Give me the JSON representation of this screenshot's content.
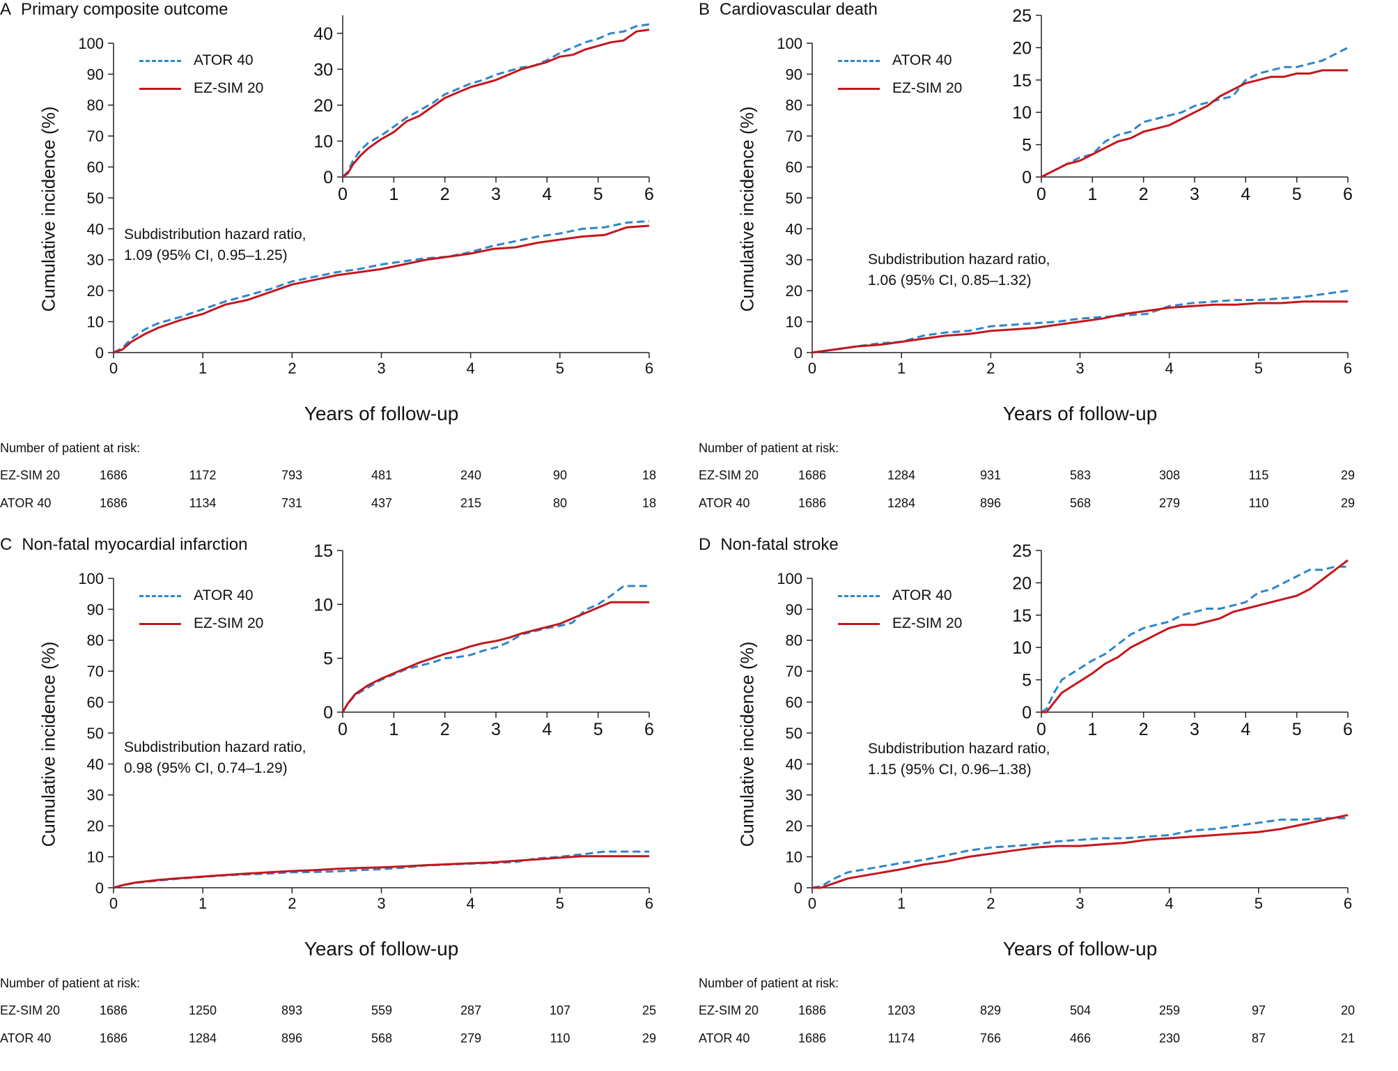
{
  "chart_data": [
    {
      "type": "line",
      "letter": "A",
      "title": "Primary composite outcome",
      "xlabel": "Years of follow-up",
      "ylabel": "Cumulative incidence (%)",
      "xlim": [
        0,
        6
      ],
      "ylim": [
        0,
        100
      ],
      "xticks": [
        0,
        1,
        2,
        3,
        4,
        5,
        6
      ],
      "yticks": [
        0,
        10,
        20,
        30,
        40,
        50,
        60,
        70,
        80,
        90,
        100
      ],
      "annotation": [
        "Subdistribution hazard ratio,",
        "1.09 (95% CI, 0.95–1.25)"
      ],
      "series": [
        {
          "name": "ATOR 40",
          "style": "dashed",
          "color": "#2f86c8",
          "x": [
            0,
            0.1,
            0.2,
            0.35,
            0.5,
            0.75,
            1,
            1.25,
            1.5,
            1.75,
            2,
            2.25,
            2.5,
            2.75,
            3,
            3.25,
            3.5,
            3.75,
            4,
            4.25,
            4.5,
            4.75,
            5,
            5.25,
            5.5,
            5.75,
            6
          ],
          "y": [
            0,
            1.5,
            4.5,
            7.5,
            9.5,
            11.5,
            14,
            16.5,
            18.5,
            20.5,
            23,
            24.5,
            26,
            27,
            28.5,
            29.5,
            30.5,
            31,
            32.5,
            34.5,
            36,
            37.5,
            38.5,
            40,
            40.5,
            42,
            42.5
          ]
        },
        {
          "name": "EZ-SIM 20",
          "style": "solid",
          "color": "#c4161c",
          "x": [
            0,
            0.1,
            0.2,
            0.35,
            0.5,
            0.75,
            1,
            1.25,
            1.5,
            1.75,
            2,
            2.25,
            2.5,
            2.75,
            3,
            3.25,
            3.5,
            3.75,
            4,
            4.25,
            4.5,
            4.75,
            5,
            5.25,
            5.5,
            5.75,
            6
          ],
          "y": [
            0,
            1,
            3.5,
            6,
            8,
            10.5,
            12.5,
            15.5,
            17,
            19.5,
            22,
            23.5,
            25,
            26,
            27,
            28.5,
            30,
            31,
            32,
            33.5,
            34,
            35.5,
            36.5,
            37.5,
            38,
            40.5,
            41
          ]
        }
      ],
      "inset": {
        "xlim": [
          0,
          6
        ],
        "ylim": [
          0,
          45
        ],
        "xticks": [
          0,
          1,
          2,
          3,
          4,
          5,
          6
        ],
        "yticks": [
          0,
          10,
          20,
          30,
          40
        ]
      },
      "risk_table": {
        "header": "Number of patient at risk:",
        "rows": [
          {
            "name": "EZ-SIM 20",
            "values": [
              "1686",
              "1172",
              "793",
              "481",
              "240",
              "90",
              "18"
            ]
          },
          {
            "name": "ATOR 40",
            "values": [
              "1686",
              "1134",
              "731",
              "437",
              "215",
              "80",
              "18"
            ]
          }
        ]
      }
    },
    {
      "type": "line",
      "letter": "B",
      "title": "Cardiovascular death",
      "xlabel": "Years of follow-up",
      "ylabel": "Cumulative incidence (%)",
      "xlim": [
        0,
        6
      ],
      "ylim": [
        0,
        100
      ],
      "xticks": [
        0,
        1,
        2,
        3,
        4,
        5,
        6
      ],
      "yticks": [
        0,
        10,
        20,
        30,
        40,
        50,
        60,
        70,
        80,
        90,
        100
      ],
      "annotation": [
        "Subdistribution hazard ratio,",
        "1.06 (95% CI, 0.85–1.32)"
      ],
      "series": [
        {
          "name": "ATOR 40",
          "style": "dashed",
          "color": "#2f86c8",
          "x": [
            0,
            0.25,
            0.5,
            0.75,
            1,
            1.25,
            1.5,
            1.75,
            2,
            2.25,
            2.5,
            2.75,
            3,
            3.25,
            3.5,
            3.75,
            4,
            4.25,
            4.5,
            4.75,
            5,
            5.25,
            5.5,
            5.75,
            6
          ],
          "y": [
            0,
            1,
            2,
            3,
            3.5,
            5.5,
            6.5,
            7,
            8.5,
            9,
            9.5,
            10,
            11,
            11.5,
            12,
            12.5,
            15,
            16,
            16.5,
            17,
            17,
            17.5,
            18,
            19,
            20
          ]
        },
        {
          "name": "EZ-SIM 20",
          "style": "solid",
          "color": "#c4161c",
          "x": [
            0,
            0.25,
            0.5,
            0.75,
            1,
            1.25,
            1.5,
            1.75,
            2,
            2.25,
            2.5,
            2.75,
            3,
            3.25,
            3.5,
            3.75,
            4,
            4.25,
            4.5,
            4.75,
            5,
            5.25,
            5.5,
            5.75,
            6
          ],
          "y": [
            0,
            1,
            2,
            2.5,
            3.5,
            4.5,
            5.5,
            6,
            7,
            7.5,
            8,
            9,
            10,
            11,
            12.5,
            13.5,
            14.5,
            15,
            15.5,
            15.5,
            16,
            16,
            16.5,
            16.5,
            16.5
          ]
        }
      ],
      "inset": {
        "xlim": [
          0,
          6
        ],
        "ylim": [
          0,
          25
        ],
        "xticks": [
          0,
          1,
          2,
          3,
          4,
          5,
          6
        ],
        "yticks": [
          0,
          5,
          10,
          15,
          20,
          25
        ]
      },
      "risk_table": {
        "header": "Number of patient at risk:",
        "rows": [
          {
            "name": "EZ-SIM 20",
            "values": [
              "1686",
              "1284",
              "931",
              "583",
              "308",
              "115",
              "29"
            ]
          },
          {
            "name": "ATOR 40",
            "values": [
              "1686",
              "1284",
              "896",
              "568",
              "279",
              "110",
              "29"
            ]
          }
        ]
      }
    },
    {
      "type": "line",
      "letter": "C",
      "title": "Non-fatal myocardial infarction",
      "xlabel": "Years of follow-up",
      "ylabel": "Cumulative incidence (%)",
      "xlim": [
        0,
        6
      ],
      "ylim": [
        0,
        100
      ],
      "xticks": [
        0,
        1,
        2,
        3,
        4,
        5,
        6
      ],
      "yticks": [
        0,
        10,
        20,
        30,
        40,
        50,
        60,
        70,
        80,
        90,
        100
      ],
      "annotation": [
        "Subdistribution hazard ratio,",
        "0.98 (95% CI, 0.74–1.29)"
      ],
      "series": [
        {
          "name": "ATOR 40",
          "style": "dashed",
          "color": "#2f86c8",
          "x": [
            0,
            0.1,
            0.25,
            0.5,
            0.75,
            1,
            1.25,
            1.5,
            1.75,
            2,
            2.25,
            2.5,
            2.75,
            3,
            3.25,
            3.5,
            3.75,
            4,
            4.25,
            4.5,
            4.75,
            5,
            5.25,
            5.5,
            5.75,
            6
          ],
          "y": [
            0,
            0.8,
            1.6,
            2.3,
            3,
            3.5,
            4,
            4.3,
            4.6,
            5,
            5.1,
            5.3,
            5.7,
            6,
            6.5,
            7.2,
            7.5,
            7.8,
            8,
            8.3,
            9.5,
            10,
            10.8,
            11.7,
            11.7,
            11.7
          ]
        },
        {
          "name": "EZ-SIM 20",
          "style": "solid",
          "color": "#c4161c",
          "x": [
            0,
            0.1,
            0.25,
            0.5,
            0.75,
            1,
            1.25,
            1.5,
            1.75,
            2,
            2.25,
            2.5,
            2.75,
            3,
            3.25,
            3.5,
            3.75,
            4,
            4.25,
            4.5,
            4.75,
            5,
            5.25,
            5.5,
            5.75,
            6
          ],
          "y": [
            0,
            0.8,
            1.7,
            2.5,
            3.1,
            3.6,
            4.1,
            4.6,
            5,
            5.4,
            5.7,
            6.1,
            6.4,
            6.6,
            6.9,
            7.3,
            7.6,
            7.9,
            8.2,
            8.7,
            9.2,
            9.7,
            10.2,
            10.2,
            10.2,
            10.2
          ]
        }
      ],
      "inset": {
        "xlim": [
          0,
          6
        ],
        "ylim": [
          0,
          15
        ],
        "xticks": [
          0,
          1,
          2,
          3,
          4,
          5,
          6
        ],
        "yticks": [
          0,
          5,
          10,
          15
        ]
      },
      "risk_table": {
        "header": "Number of patient at risk:",
        "rows": [
          {
            "name": "EZ-SIM 20",
            "values": [
              "1686",
              "1250",
              "893",
              "559",
              "287",
              "107",
              "25"
            ]
          },
          {
            "name": "ATOR 40",
            "values": [
              "1686",
              "1284",
              "896",
              "568",
              "279",
              "110",
              "29"
            ]
          }
        ]
      }
    },
    {
      "type": "line",
      "letter": "D",
      "title": "Non-fatal stroke",
      "xlabel": "Years of follow-up",
      "ylabel": "Cumulative incidence (%)",
      "xlim": [
        0,
        6
      ],
      "ylim": [
        0,
        100
      ],
      "xticks": [
        0,
        1,
        2,
        3,
        4,
        5,
        6
      ],
      "yticks": [
        0,
        10,
        20,
        30,
        40,
        50,
        60,
        70,
        80,
        90,
        100
      ],
      "annotation": [
        "Subdistribution hazard ratio,",
        "1.15 (95% CI, 0.96–1.38)"
      ],
      "series": [
        {
          "name": "ATOR 40",
          "style": "dashed",
          "color": "#2f86c8",
          "x": [
            0,
            0.1,
            0.25,
            0.4,
            0.6,
            0.8,
            1,
            1.25,
            1.5,
            1.75,
            2,
            2.25,
            2.5,
            2.75,
            3,
            3.25,
            3.5,
            3.75,
            4,
            4.25,
            4.5,
            4.75,
            5,
            5.25,
            5.5,
            5.75,
            6
          ],
          "y": [
            0,
            0.5,
            3,
            5,
            6,
            7,
            8,
            9,
            10.5,
            12,
            13,
            13.5,
            14,
            15,
            15.5,
            16,
            16,
            16.5,
            17,
            18.5,
            19,
            20,
            21,
            22,
            22,
            22.5,
            22.5
          ]
        },
        {
          "name": "EZ-SIM 20",
          "style": "solid",
          "color": "#c4161c",
          "x": [
            0,
            0.1,
            0.25,
            0.4,
            0.6,
            0.8,
            1,
            1.25,
            1.5,
            1.75,
            2,
            2.25,
            2.5,
            2.75,
            3,
            3.25,
            3.5,
            3.75,
            4,
            4.25,
            4.5,
            4.75,
            5,
            5.25,
            5.5,
            5.75,
            6
          ],
          "y": [
            0,
            0,
            1.5,
            3,
            4,
            5,
            6,
            7.5,
            8.5,
            10,
            11,
            12,
            13,
            13.5,
            13.5,
            14,
            14.5,
            15.5,
            16,
            16.5,
            17,
            17.5,
            18,
            19,
            20.5,
            22,
            23.5
          ]
        }
      ],
      "inset": {
        "xlim": [
          0,
          6
        ],
        "ylim": [
          0,
          25
        ],
        "xticks": [
          0,
          1,
          2,
          3,
          4,
          5,
          6
        ],
        "yticks": [
          0,
          5,
          10,
          15,
          20,
          25
        ]
      },
      "risk_table": {
        "header": "Number of patient at risk:",
        "rows": [
          {
            "name": "EZ-SIM 20",
            "values": [
              "1686",
              "1203",
              "829",
              "504",
              "259",
              "97",
              "20"
            ]
          },
          {
            "name": "ATOR 40",
            "values": [
              "1686",
              "1174",
              "766",
              "466",
              "230",
              "87",
              "21"
            ]
          }
        ]
      }
    }
  ]
}
